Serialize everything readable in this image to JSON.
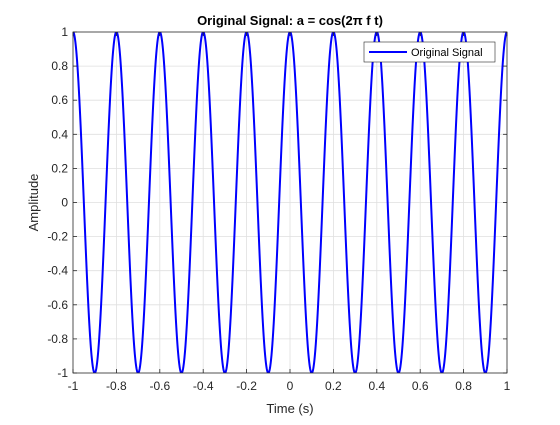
{
  "chart_data": {
    "type": "line",
    "title": "Original Signal: a = cos(2π f t)",
    "xlabel": "Time (s)",
    "ylabel": "Amplitude",
    "xlim": [
      -1,
      1
    ],
    "ylim": [
      -1,
      1
    ],
    "x_ticks": [
      -1,
      -0.8,
      -0.6,
      -0.4,
      -0.2,
      0,
      0.2,
      0.4,
      0.6,
      0.8,
      1
    ],
    "x_tick_labels": [
      "-1",
      "-0.8",
      "-0.6",
      "-0.4",
      "-0.2",
      "0",
      "0.2",
      "0.4",
      "0.6",
      "0.8",
      "1"
    ],
    "y_ticks": [
      -1,
      -0.8,
      -0.6,
      -0.4,
      -0.2,
      0,
      0.2,
      0.4,
      0.6,
      0.8,
      1
    ],
    "y_tick_labels": [
      "-1",
      "-0.8",
      "-0.6",
      "-0.4",
      "-0.2",
      "0",
      "0.2",
      "0.4",
      "0.6",
      "0.8",
      "1"
    ],
    "grid": true,
    "legend_position": "top-right",
    "series": [
      {
        "name": "Original Signal",
        "color": "#0000ff",
        "function": "cos(2*pi*f*t)",
        "frequency_hz": 5,
        "amplitude": 1
      }
    ]
  }
}
